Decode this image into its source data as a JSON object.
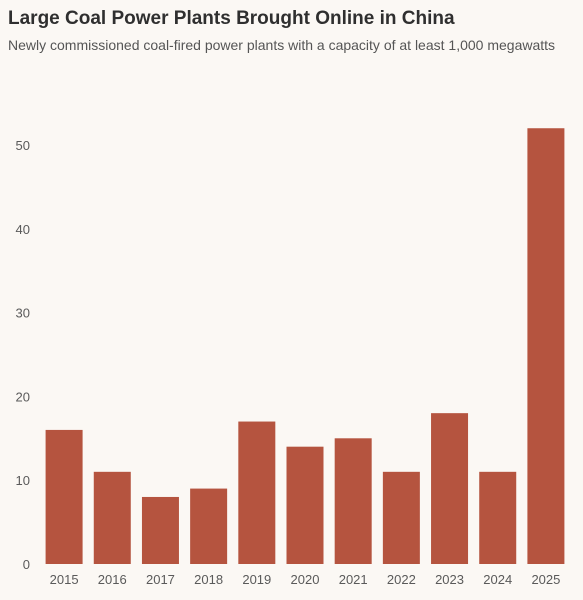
{
  "chart_data": {
    "type": "bar",
    "title": "Large Coal Power Plants Brought Online in China",
    "subtitle": "Newly commissioned coal-fired power plants with a capacity of at least 1,000 megawatts",
    "xlabel": "",
    "ylabel": "",
    "categories": [
      "2015",
      "2016",
      "2017",
      "2018",
      "2019",
      "2020",
      "2021",
      "2022",
      "2023",
      "2024",
      "2025"
    ],
    "values": [
      16,
      11,
      8,
      9,
      17,
      14,
      15,
      11,
      18,
      11,
      52
    ],
    "ylim": [
      0,
      55
    ],
    "yticks": [
      0,
      10,
      20,
      30,
      40,
      50
    ],
    "grid": false,
    "legend": "none",
    "bar_color": "#b5543f"
  }
}
